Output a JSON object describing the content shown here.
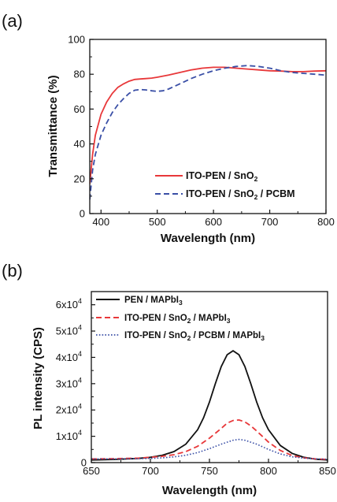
{
  "panels": [
    {
      "label": "(a)",
      "chart_data": {
        "type": "line",
        "xlabel": "Wavelength (nm)",
        "ylabel": "Transmittance (%)",
        "xlim": [
          380,
          800
        ],
        "ylim": [
          0,
          100
        ],
        "xticks": [
          400,
          500,
          600,
          700,
          800
        ],
        "yticks": [
          0,
          20,
          40,
          60,
          80,
          100
        ],
        "legend_position": "bottom-right",
        "series": [
          {
            "name": "ITO-PEN / SnO2",
            "color": "#e8383a",
            "style": "solid",
            "x": [
              380,
              385,
              390,
              400,
              410,
              420,
              430,
              440,
              450,
              460,
              470,
              480,
              490,
              500,
              520,
              540,
              560,
              580,
              600,
              620,
              640,
              660,
              680,
              700,
              720,
              740,
              760,
              780,
              800
            ],
            "y": [
              17,
              34,
              45,
              57,
              64,
              69,
              72.5,
              74.5,
              76,
              77,
              77.3,
              77.5,
              77.8,
              78.3,
              79.5,
              81,
              82.5,
              83.5,
              84,
              84,
              83.5,
              83,
              82.5,
              82,
              81.8,
              81.5,
              81.5,
              81.8,
              82
            ]
          },
          {
            "name": "ITO-PEN / SnO2 / PCBM",
            "color": "#3a4fa6",
            "style": "dashed",
            "x": [
              380,
              385,
              390,
              400,
              410,
              420,
              430,
              440,
              450,
              460,
              470,
              480,
              490,
              500,
              510,
              520,
              540,
              560,
              580,
              600,
              620,
              640,
              660,
              680,
              700,
              720,
              740,
              760,
              780,
              800
            ],
            "y": [
              8,
              25,
              34,
              45,
              52,
              58,
              62.5,
              66,
              69,
              70.8,
              71.2,
              71,
              70.5,
              70.2,
              70.5,
              71.5,
              74.5,
              77.5,
              80,
              82,
              83.5,
              84.5,
              85,
              84.5,
              83.5,
              82,
              81,
              80.5,
              80,
              79.5
            ]
          }
        ]
      }
    },
    {
      "label": "(b)",
      "chart_data": {
        "type": "line",
        "xlabel": "Wavelength (nm)",
        "ylabel": "PL intensity (CPS)",
        "xlim": [
          650,
          850
        ],
        "ylim": [
          0,
          65000
        ],
        "xticks": [
          650,
          700,
          750,
          800,
          850
        ],
        "yticks": [
          0,
          10000,
          20000,
          30000,
          40000,
          50000,
          60000
        ],
        "ytick_labels": [
          "0",
          "1x10",
          "2x10",
          "3x10",
          "4x10",
          "5x10",
          "6x10"
        ],
        "ytick_exponent": "4",
        "legend_position": "top-left",
        "series": [
          {
            "name": "PEN / MAPbI3",
            "name_parts": [
              "PEN / MAPbI",
              "3",
              ""
            ],
            "color": "#111111",
            "style": "solid",
            "x": [
              650,
              670,
              690,
              700,
              710,
              720,
              730,
              740,
              745,
              750,
              755,
              760,
              765,
              770,
              775,
              780,
              785,
              790,
              795,
              800,
              810,
              820,
              830,
              840,
              850
            ],
            "y": [
              1000,
              1200,
              1600,
              2000,
              2800,
              4200,
              7000,
              12500,
              17000,
              23000,
              30000,
              36500,
              41000,
              42500,
              41000,
              36500,
              30000,
              23000,
              17000,
              12500,
              6500,
              3500,
              2000,
              1300,
              1000
            ]
          },
          {
            "name": "ITO-PEN / SnO2 / MAPbI3",
            "name_parts": [
              "ITO-PEN / SnO",
              "2",
              " / MAPbI",
              "3",
              ""
            ],
            "color": "#e8383a",
            "style": "dashed",
            "x": [
              650,
              670,
              690,
              700,
              710,
              720,
              730,
              740,
              750,
              760,
              765,
              770,
              775,
              780,
              785,
              790,
              800,
              810,
              820,
              830,
              840,
              850
            ],
            "y": [
              1400,
              1500,
              1700,
              2000,
              2400,
              3000,
              4200,
              6200,
              9300,
              13000,
              15000,
              16000,
              16200,
              15500,
              14000,
              12000,
              7800,
              4600,
              2700,
              1800,
              1400,
              1200
            ]
          },
          {
            "name": "ITO-PEN / SnO2 / PCBM / MAPbI3",
            "name_parts": [
              "ITO-PEN / SnO",
              "2",
              " / PCBM / MAPbI",
              "3",
              ""
            ],
            "color": "#3a4fa6",
            "style": "dotted",
            "x": [
              650,
              670,
              690,
              700,
              710,
              720,
              730,
              740,
              750,
              760,
              770,
              775,
              780,
              790,
              800,
              810,
              820,
              830,
              840,
              850
            ],
            "y": [
              1400,
              1400,
              1500,
              1600,
              1800,
              2200,
              2800,
              3800,
              5300,
              7000,
              8500,
              8800,
              8500,
              7000,
              5000,
              3300,
              2200,
              1700,
              1400,
              1300
            ]
          }
        ]
      }
    }
  ]
}
